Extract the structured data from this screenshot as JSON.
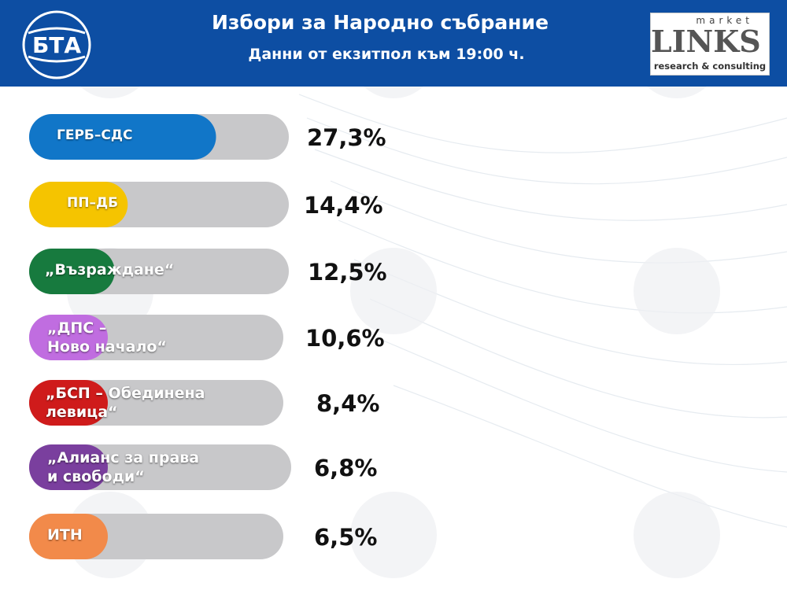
{
  "header": {
    "title": "Избори за Народно събрание",
    "subtitle": "Данни от екзитпол към 19:00 ч.",
    "bta_logo_text": "БТА",
    "partner_logo": {
      "word_market": "market",
      "word_links": "LINKS",
      "tagline": "research & consulting"
    }
  },
  "colors": {
    "header_bg": "#0d4ea3",
    "track": "#c8c8ca",
    "series": [
      "#1176c8",
      "#f5c400",
      "#177a3e",
      "#c06de0",
      "#cf1b1b",
      "#7a3f9e",
      "#f28a4a"
    ]
  },
  "chart_data": {
    "type": "bar",
    "orientation": "horizontal",
    "title": "Избори за Народно събрание",
    "subtitle": "Данни от екзитпол към 19:00 ч.",
    "categories": [
      "ГЕРБ–СДС",
      "ПП–ДБ",
      "„Възраждане“",
      "„ДПС – Ново начало“",
      "„БСП – Обединена левица“",
      "„Алианс за права и свободи“",
      "ИТН"
    ],
    "label_lines": [
      [
        "ГЕРБ–СДС"
      ],
      [
        "ПП–ДБ"
      ],
      [
        "„Възраждане“"
      ],
      [
        "„ДПС –",
        "Ново начало“"
      ],
      [
        "„БСП – Обединена",
        "левица“"
      ],
      [
        "„Алианс за права",
        "и свободи“"
      ],
      [
        "ИТН"
      ]
    ],
    "values": [
      27.3,
      14.4,
      12.5,
      10.6,
      8.4,
      6.8,
      6.5
    ],
    "value_labels": [
      "27,3%",
      "14,4%",
      "12,5%",
      "10,6%",
      "8,4%",
      "6,8%",
      "6,5%"
    ],
    "unit": "%",
    "legend": "none",
    "grid": false
  }
}
